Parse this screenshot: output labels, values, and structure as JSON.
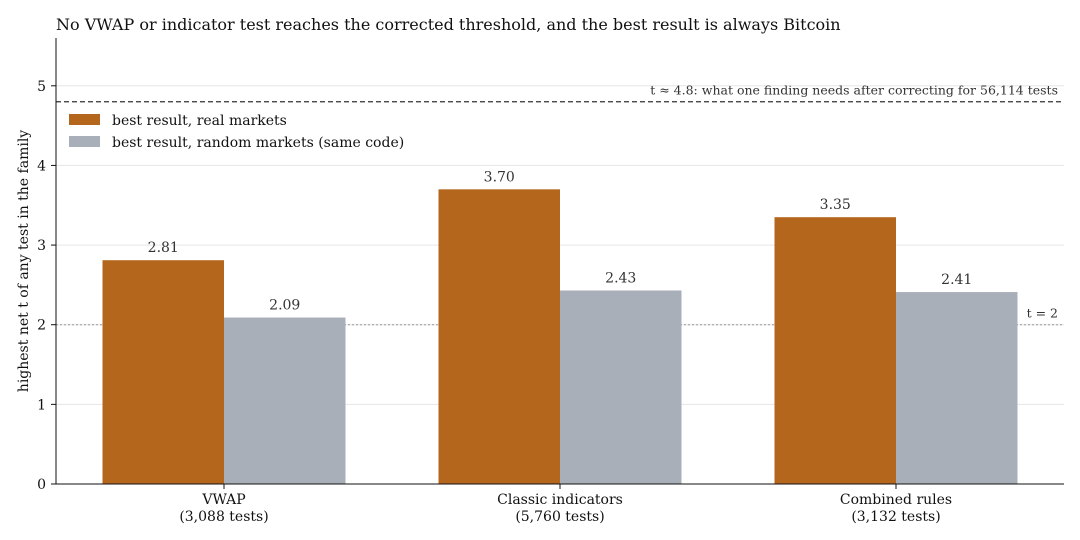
{
  "chart_data": {
    "type": "bar",
    "title": "No VWAP or indicator test reaches the corrected threshold, and the best result is always Bitcoin",
    "xlabel": "",
    "ylabel": "highest net t of any test in the family",
    "ylim": [
      0,
      5.6
    ],
    "yticks": [
      0,
      1,
      2,
      3,
      4,
      5
    ],
    "grid": true,
    "legend_position": "top-left",
    "categories": [
      {
        "line1": "VWAP",
        "line2": "(3,088 tests)"
      },
      {
        "line1": "Classic indicators",
        "line2": "(5,760 tests)"
      },
      {
        "line1": "Combined rules",
        "line2": "(3,132 tests)"
      }
    ],
    "series": [
      {
        "name": "best result, real markets",
        "color": "#b5661d",
        "values": [
          2.81,
          3.7,
          3.35
        ],
        "labels": [
          "2.81",
          "3.70",
          "3.35"
        ]
      },
      {
        "name": "best result, random markets (same code)",
        "color": "#a9afb8",
        "values": [
          2.09,
          2.43,
          2.41
        ],
        "labels": [
          "2.09",
          "2.43",
          "2.41"
        ]
      }
    ],
    "reference_lines": [
      {
        "value": 4.8,
        "style": "dashed",
        "label": "t ≈ 4.8: what one finding needs after correcting for 56,114 tests"
      },
      {
        "value": 2,
        "style": "dotted",
        "label": "t = 2"
      }
    ]
  }
}
